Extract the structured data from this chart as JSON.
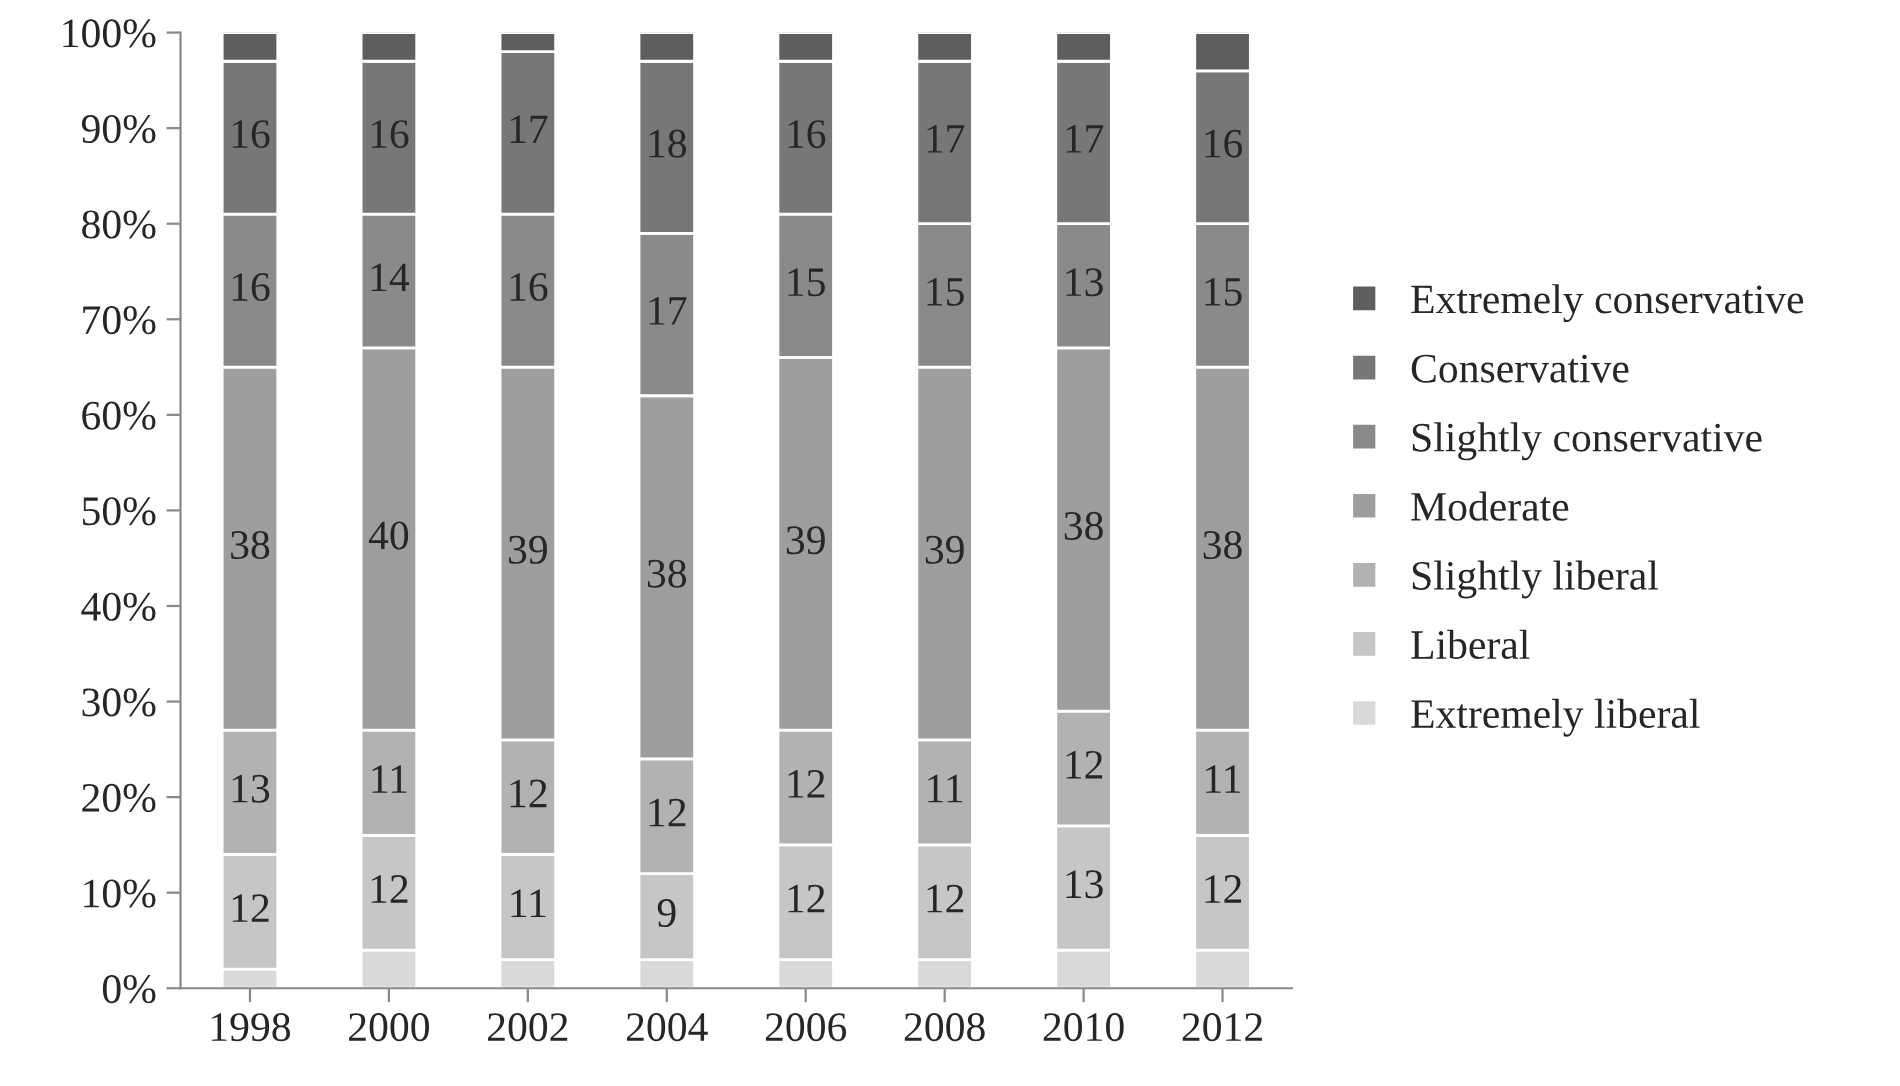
{
  "chart_data": {
    "type": "bar",
    "stacked": true,
    "categories": [
      "1998",
      "2000",
      "2002",
      "2004",
      "2006",
      "2008",
      "2010",
      "2012"
    ],
    "series": [
      {
        "name": "Extremely liberal",
        "color": "#d9d9d9",
        "values": [
          2,
          4,
          3,
          3,
          3,
          3,
          4,
          4
        ],
        "value_labels": [
          null,
          null,
          null,
          null,
          null,
          null,
          null,
          null
        ]
      },
      {
        "name": "Liberal",
        "color": "#c6c6c6",
        "values": [
          12,
          12,
          11,
          9,
          12,
          12,
          13,
          12
        ],
        "value_labels": [
          "12",
          "12",
          "11",
          "9",
          "12",
          "12",
          "13",
          "12"
        ]
      },
      {
        "name": "Slightly liberal",
        "color": "#b2b2b2",
        "values": [
          13,
          11,
          12,
          12,
          12,
          11,
          12,
          11
        ],
        "value_labels": [
          "13",
          "11",
          "12",
          "12",
          "12",
          "11",
          "12",
          "11"
        ]
      },
      {
        "name": "Moderate",
        "color": "#9e9e9e",
        "values": [
          38,
          40,
          39,
          38,
          39,
          39,
          38,
          38
        ],
        "value_labels": [
          "38",
          "40",
          "39",
          "38",
          "39",
          "39",
          "38",
          "38"
        ]
      },
      {
        "name": "Slightly conservative",
        "color": "#8a8a8a",
        "values": [
          16,
          14,
          16,
          17,
          15,
          15,
          13,
          15
        ],
        "value_labels": [
          "16",
          "14",
          "16",
          "17",
          "15",
          "15",
          "13",
          "15"
        ]
      },
      {
        "name": "Conservative",
        "color": "#777777",
        "values": [
          16,
          16,
          17,
          18,
          16,
          17,
          17,
          16
        ],
        "value_labels": [
          "16",
          "16",
          "17",
          "18",
          "16",
          "17",
          "17",
          "16"
        ]
      },
      {
        "name": "Extremely conservative",
        "color": "#5e5e5e",
        "values": [
          3,
          3,
          2,
          3,
          3,
          3,
          3,
          4
        ],
        "value_labels": [
          null,
          null,
          null,
          null,
          null,
          null,
          null,
          null
        ]
      }
    ],
    "ylim": [
      0,
      100
    ],
    "yticks": [
      {
        "value": 0,
        "label": "0%"
      },
      {
        "value": 10,
        "label": "10%"
      },
      {
        "value": 20,
        "label": "20%"
      },
      {
        "value": 30,
        "label": "30%"
      },
      {
        "value": 40,
        "label": "40%"
      },
      {
        "value": 50,
        "label": "50%"
      },
      {
        "value": 60,
        "label": "60%"
      },
      {
        "value": 70,
        "label": "70%"
      },
      {
        "value": 80,
        "label": "80%"
      },
      {
        "value": 90,
        "label": "90%"
      },
      {
        "value": 100,
        "label": "100%"
      }
    ],
    "grid": false,
    "legend": "right"
  }
}
